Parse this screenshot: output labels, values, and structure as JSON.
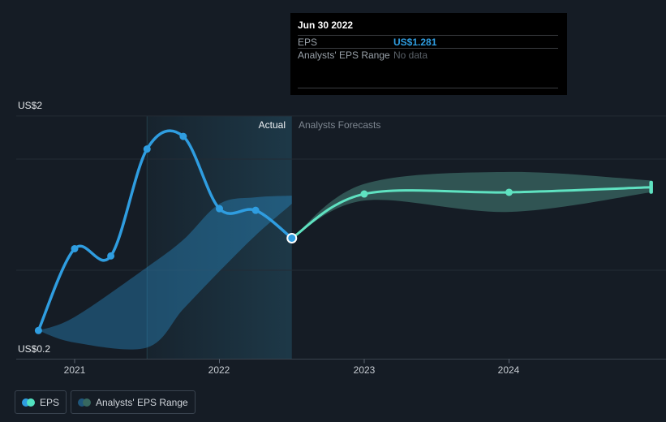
{
  "colors": {
    "background": "#151c25",
    "actual_line": "#2f9de0",
    "forecast_line": "#5fe2c1",
    "actual_band_fill": "rgba(47,157,224,0.35)",
    "forecast_band_fill": "rgba(120,230,205,0.28)",
    "gridline": "#232b35",
    "axis_line": "#3a424d",
    "divider_top": "#43aae6",
    "divider_bottom": "#1d4f73",
    "highlight_tint": "rgba(62,170,210,0.20)",
    "tooltip_bg": "#000000",
    "tooltip_value_blue": "#2f9de0",
    "muted_text": "#99a1a9"
  },
  "tooltip": {
    "date": "Jun 30 2022",
    "rows": [
      {
        "label": "EPS",
        "value": "US$1.281",
        "value_color": "#2f9de0"
      },
      {
        "label": "Analysts' EPS Range",
        "value": "No data",
        "value_color": "#596067"
      }
    ]
  },
  "phase_labels": {
    "actual": "Actual",
    "forecast": "Analysts Forecasts"
  },
  "legend": {
    "items": [
      {
        "label": "EPS",
        "dot_colors": [
          "#2f9de0",
          "#52e2c0"
        ]
      },
      {
        "label": "Analysts' EPS Range",
        "dot_colors": [
          "#1f567b",
          "#37685f"
        ]
      }
    ]
  },
  "chart_data": {
    "type": "line",
    "title": "EPS actual vs analysts forecasts",
    "y_axis": {
      "top_label": "US$2",
      "bottom_label": "US$0.2",
      "top_value": 2.0,
      "bottom_value": 0.2,
      "unit": "US$"
    },
    "x_axis": {
      "ticks": [
        {
          "label": "2021",
          "value": 2021
        },
        {
          "label": "2022",
          "value": 2022
        },
        {
          "label": "2023",
          "value": 2023
        },
        {
          "label": "2024",
          "value": 2024
        }
      ],
      "range": [
        2020.6,
        2025.08
      ]
    },
    "divider": {
      "x_value": 2022.5,
      "hover_date": "Jun 30 2022"
    },
    "highlight_span": {
      "from": 2021.5,
      "to": 2022.5
    },
    "series": [
      {
        "name": "EPS",
        "kind": "actual",
        "x": [
          2020.75,
          2021.0,
          2021.25,
          2021.5,
          2021.75,
          2022.0,
          2022.25,
          2022.5
        ],
        "y": [
          0.55,
          1.21,
          1.16,
          1.82,
          1.89,
          1.47,
          1.46,
          1.281
        ]
      },
      {
        "name": "EPS (analysts forecast)",
        "kind": "forecast",
        "x": [
          2022.5,
          2023.0,
          2024.0,
          2024.98
        ],
        "y": [
          1.281,
          1.56,
          1.57,
          1.6
        ]
      }
    ],
    "bands": [
      {
        "name": "Analysts' EPS Range (actual period)",
        "kind": "actual",
        "points": [
          {
            "x": 2020.75,
            "lo": 0.55,
            "hi": 0.55
          },
          {
            "x": 2021.0,
            "lo": 0.42,
            "hi": 0.68
          },
          {
            "x": 2021.5,
            "lo": 0.36,
            "hi": 1.08
          },
          {
            "x": 2021.75,
            "lo": 0.75,
            "hi": 1.27
          },
          {
            "x": 2022.0,
            "lo": 1.05,
            "hi": 1.5
          },
          {
            "x": 2022.25,
            "lo": 1.3,
            "hi": 1.54
          },
          {
            "x": 2022.5,
            "lo": 1.5,
            "hi": 1.55
          }
        ]
      },
      {
        "name": "Analysts' EPS Range (forecast period)",
        "kind": "forecast",
        "points": [
          {
            "x": 2022.5,
            "lo": 1.281,
            "hi": 1.281
          },
          {
            "x": 2023.0,
            "lo": 1.52,
            "hi": 1.62
          },
          {
            "x": 2024.0,
            "lo": 1.45,
            "hi": 1.69
          },
          {
            "x": 2024.98,
            "lo": 1.57,
            "hi": 1.64
          }
        ]
      }
    ],
    "hovered_point": {
      "x": 2022.5,
      "value": 1.281,
      "value_label": "US$1.281"
    },
    "legend_position": "bottom-left",
    "grid": true
  }
}
